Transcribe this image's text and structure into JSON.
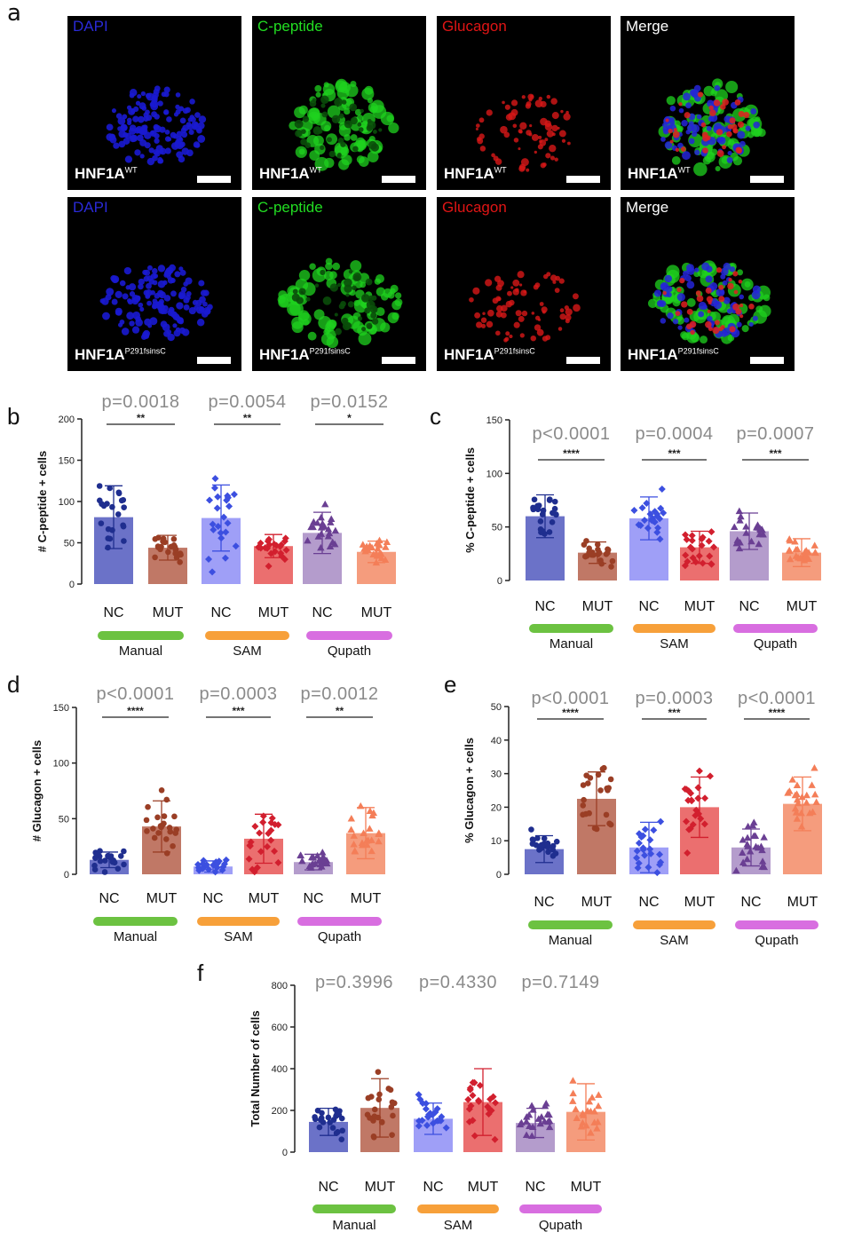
{
  "panel_a": {
    "letter": "a",
    "rows": [
      {
        "genotype": "HNF1A",
        "genotype_sup": "WT",
        "tiles": [
          {
            "stain": "DAPI",
            "color": "#2a2ad8"
          },
          {
            "stain": "C-peptide",
            "color": "#22dd22"
          },
          {
            "stain": "Glucagon",
            "color": "#e01515"
          },
          {
            "stain": "Merge",
            "color": "#ffffff"
          }
        ]
      },
      {
        "genotype": "HNF1A",
        "genotype_sup": "P291fsinsC",
        "tiles": [
          {
            "stain": "DAPI",
            "color": "#2a2ad8"
          },
          {
            "stain": "C-peptide",
            "color": "#22dd22"
          },
          {
            "stain": "Glucagon",
            "color": "#e01515"
          },
          {
            "stain": "Merge",
            "color": "#ffffff"
          }
        ]
      }
    ]
  },
  "chart_data": [
    {
      "id": "b",
      "letter": "b",
      "type": "bar",
      "ylabel": "# C-peptide + cells",
      "ylim": [
        0,
        200
      ],
      "yticks": [
        "0",
        "50",
        "100",
        "150",
        "200"
      ],
      "categories": [
        "NC",
        "MUT",
        "NC",
        "MUT",
        "NC",
        "MUT"
      ],
      "values": [
        81,
        44,
        80,
        46,
        62,
        39
      ],
      "sd": [
        38,
        15,
        40,
        14,
        25,
        13
      ],
      "groups": [
        {
          "label": "Manual",
          "color": "#6cc241",
          "p": "p=0.0018",
          "stars": "**"
        },
        {
          "label": "SAM",
          "color": "#f7a03a",
          "p": "p=0.0054",
          "stars": "**"
        },
        {
          "label": "Qupath",
          "color": "#d86ee0",
          "p": "p=0.0152",
          "stars": "*"
        }
      ]
    },
    {
      "id": "c",
      "letter": "c",
      "type": "bar",
      "ylabel": "% C-peptide + cells",
      "ylim": [
        0,
        150
      ],
      "yticks": [
        "0",
        "50",
        "100",
        "150"
      ],
      "categories": [
        "NC",
        "MUT",
        "NC",
        "MUT",
        "NC",
        "MUT"
      ],
      "values": [
        60,
        26,
        58,
        31,
        46,
        26
      ],
      "sd": [
        20,
        10,
        20,
        15,
        17,
        13
      ],
      "groups": [
        {
          "label": "Manual",
          "color": "#6cc241",
          "p": "p<0.0001",
          "stars": "****"
        },
        {
          "label": "SAM",
          "color": "#f7a03a",
          "p": "p=0.0004",
          "stars": "***"
        },
        {
          "label": "Qupath",
          "color": "#d86ee0",
          "p": "p=0.0007",
          "stars": "***"
        }
      ]
    },
    {
      "id": "d",
      "letter": "d",
      "type": "bar",
      "ylabel": "# Glucagon + cells",
      "ylim": [
        0,
        150
      ],
      "yticks": [
        "0",
        "50",
        "100",
        "150"
      ],
      "categories": [
        "NC",
        "MUT",
        "NC",
        "MUT",
        "NC",
        "MUT"
      ],
      "values": [
        13,
        43,
        7,
        32,
        11,
        37
      ],
      "sd": [
        7,
        23,
        5,
        22,
        7,
        23
      ],
      "groups": [
        {
          "label": "Manual",
          "color": "#6cc241",
          "p": "p<0.0001",
          "stars": "****"
        },
        {
          "label": "SAM",
          "color": "#f7a03a",
          "p": "p=0.0003",
          "stars": "***"
        },
        {
          "label": "Qupath",
          "color": "#d86ee0",
          "p": "p=0.0012",
          "stars": "**"
        }
      ]
    },
    {
      "id": "e",
      "letter": "e",
      "type": "bar",
      "ylabel": "% Glucagon + cells",
      "ylim": [
        0,
        50
      ],
      "yticks": [
        "0",
        "10",
        "20",
        "30",
        "40",
        "50"
      ],
      "categories": [
        "NC",
        "MUT",
        "NC",
        "MUT",
        "NC",
        "MUT"
      ],
      "values": [
        7.5,
        22.5,
        8,
        20,
        8,
        21
      ],
      "sd": [
        4,
        8,
        7.5,
        9,
        5.5,
        8
      ],
      "groups": [
        {
          "label": "Manual",
          "color": "#6cc241",
          "p": "p<0.0001",
          "stars": "****"
        },
        {
          "label": "SAM",
          "color": "#f7a03a",
          "p": "p=0.0003",
          "stars": "***"
        },
        {
          "label": "Qupath",
          "color": "#d86ee0",
          "p": "p<0.0001",
          "stars": "****"
        }
      ]
    },
    {
      "id": "f",
      "letter": "f",
      "type": "bar",
      "ylabel": "Total Number of cells",
      "ylim": [
        0,
        800
      ],
      "yticks": [
        "0",
        "200",
        "400",
        "600",
        "800"
      ],
      "categories": [
        "NC",
        "MUT",
        "NC",
        "MUT",
        "NC",
        "MUT"
      ],
      "values": [
        145,
        212,
        160,
        240,
        140,
        193
      ],
      "sd": [
        65,
        140,
        75,
        160,
        70,
        135
      ],
      "groups": [
        {
          "label": "Manual",
          "color": "#6cc241",
          "p": "p=0.3996",
          "stars": ""
        },
        {
          "label": "SAM",
          "color": "#f7a03a",
          "p": "p=0.4330",
          "stars": ""
        },
        {
          "label": "Qupath",
          "color": "#d86ee0",
          "p": "p=0.7149",
          "stars": ""
        }
      ]
    }
  ]
}
